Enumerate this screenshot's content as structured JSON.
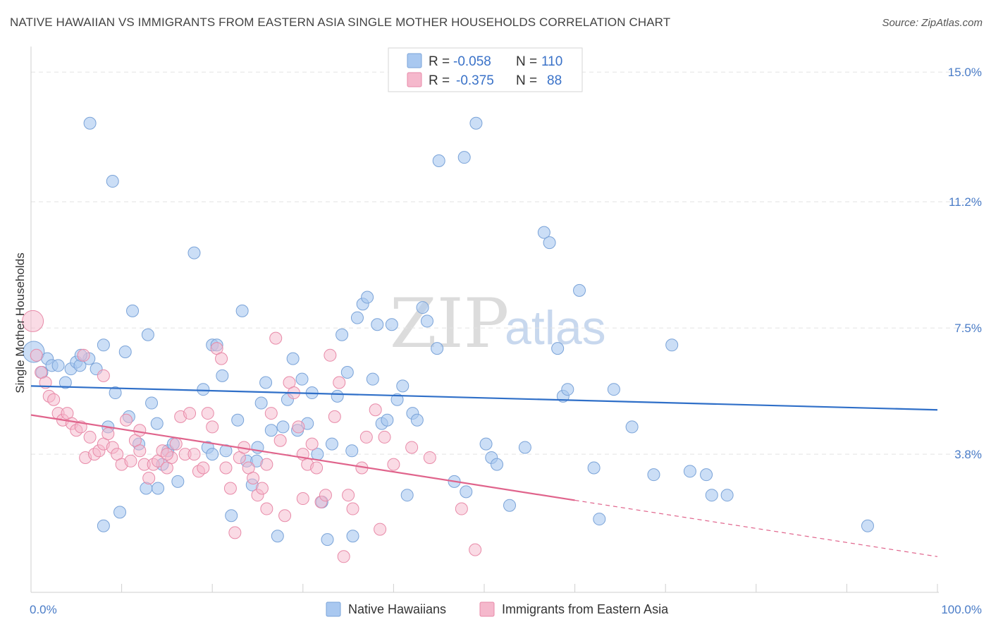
{
  "title": "NATIVE HAWAIIAN VS IMMIGRANTS FROM EASTERN ASIA SINGLE MOTHER HOUSEHOLDS CORRELATION CHART",
  "source": "Source: ZipAtlas.com",
  "watermark": {
    "zip": "ZIP",
    "atlas": "atlas"
  },
  "colors": {
    "blue": "#a9c8f0",
    "blue_edge": "#7aa3d8",
    "blue_line": "#2f6fc8",
    "pink": "#f5b8cc",
    "pink_edge": "#e88aa8",
    "pink_line": "#e0648c",
    "tick_label": "#4a7cc7"
  },
  "legend": {
    "rows": [
      {
        "r_label": "R =",
        "r_value": "-0.058",
        "n_label": "N =",
        "n_value": "110",
        "color": "blue"
      },
      {
        "r_label": "R =",
        "r_value": "-0.375",
        "n_label": "N =",
        "n_value": "88",
        "color": "pink"
      }
    ]
  },
  "bottom_legend": [
    {
      "label": "Native Hawaiians",
      "color": "blue"
    },
    {
      "label": "Immigrants from Eastern Asia",
      "color": "pink"
    }
  ],
  "chart_data": {
    "type": "scatter",
    "title": "NATIVE HAWAIIAN VS IMMIGRANTS FROM EASTERN ASIA SINGLE MOTHER HOUSEHOLDS CORRELATION CHART",
    "xlabel": "",
    "ylabel": "Single Mother Households",
    "xlim": [
      0,
      100
    ],
    "ylim": [
      0,
      15.5
    ],
    "x_tick_labels": [
      "0.0%",
      "100.0%"
    ],
    "y_ticks": [
      3.8,
      7.5,
      11.2,
      15.0
    ],
    "y_tick_labels": [
      "3.8%",
      "7.5%",
      "11.2%",
      "15.0%"
    ],
    "grid": true,
    "legend_position": "top-center",
    "series": [
      {
        "name": "Native Hawaiians",
        "color": "blue",
        "trend": {
          "x0": 0,
          "y0": 5.8,
          "x1": 100,
          "y1": 5.1
        },
        "points": [
          [
            0.3,
            6.8
          ],
          [
            1.2,
            6.2
          ],
          [
            1.8,
            6.6
          ],
          [
            2.3,
            6.4
          ],
          [
            3.0,
            6.4
          ],
          [
            3.8,
            5.9
          ],
          [
            4.4,
            6.3
          ],
          [
            5.0,
            6.5
          ],
          [
            5.4,
            6.4
          ],
          [
            6.4,
            6.6
          ],
          [
            7.2,
            6.3
          ],
          [
            8.0,
            7.0
          ],
          [
            8.5,
            4.6
          ],
          [
            9.0,
            11.8
          ],
          [
            9.3,
            5.6
          ],
          [
            9.8,
            2.1
          ],
          [
            10.4,
            6.8
          ],
          [
            10.8,
            4.9
          ],
          [
            11.2,
            8.0
          ],
          [
            11.9,
            4.1
          ],
          [
            12.9,
            7.3
          ],
          [
            13.3,
            5.3
          ],
          [
            13.9,
            4.7
          ],
          [
            14.5,
            3.5
          ],
          [
            15.1,
            3.9
          ],
          [
            15.7,
            4.1
          ],
          [
            16.2,
            3.0
          ],
          [
            18.0,
            9.7
          ],
          [
            19.0,
            5.7
          ],
          [
            19.5,
            4.0
          ],
          [
            20.0,
            7.0
          ],
          [
            20.5,
            7.0
          ],
          [
            21.1,
            6.1
          ],
          [
            21.5,
            3.9
          ],
          [
            22.1,
            2.0
          ],
          [
            22.8,
            4.8
          ],
          [
            23.3,
            8.0
          ],
          [
            23.8,
            3.6
          ],
          [
            24.4,
            2.9
          ],
          [
            24.9,
            3.6
          ],
          [
            25.4,
            5.3
          ],
          [
            25.9,
            5.9
          ],
          [
            26.5,
            4.5
          ],
          [
            27.2,
            1.4
          ],
          [
            27.8,
            4.6
          ],
          [
            28.3,
            5.4
          ],
          [
            28.9,
            6.6
          ],
          [
            29.4,
            4.5
          ],
          [
            29.9,
            6.0
          ],
          [
            30.5,
            4.7
          ],
          [
            31.0,
            5.6
          ],
          [
            31.6,
            3.8
          ],
          [
            32.1,
            2.4
          ],
          [
            32.7,
            1.3
          ],
          [
            33.2,
            4.1
          ],
          [
            33.8,
            5.5
          ],
          [
            34.3,
            7.3
          ],
          [
            34.9,
            6.2
          ],
          [
            35.4,
            3.9
          ],
          [
            36.0,
            7.8
          ],
          [
            36.6,
            8.2
          ],
          [
            37.1,
            8.4
          ],
          [
            37.7,
            6.0
          ],
          [
            38.2,
            7.6
          ],
          [
            38.7,
            4.7
          ],
          [
            39.3,
            4.8
          ],
          [
            39.8,
            7.6
          ],
          [
            40.4,
            5.4
          ],
          [
            41.0,
            5.8
          ],
          [
            41.5,
            2.6
          ],
          [
            42.1,
            5.0
          ],
          [
            42.6,
            4.8
          ],
          [
            43.2,
            8.1
          ],
          [
            43.7,
            7.7
          ],
          [
            45.0,
            12.4
          ],
          [
            44.8,
            6.9
          ],
          [
            46.7,
            3.0
          ],
          [
            47.8,
            12.5
          ],
          [
            48.0,
            2.7
          ],
          [
            49.1,
            13.5
          ],
          [
            50.2,
            4.1
          ],
          [
            50.8,
            3.7
          ],
          [
            51.4,
            3.5
          ],
          [
            52.8,
            2.3
          ],
          [
            54.5,
            4.0
          ],
          [
            56.6,
            10.3
          ],
          [
            57.2,
            10.0
          ],
          [
            58.1,
            6.9
          ],
          [
            58.7,
            5.5
          ],
          [
            59.2,
            5.7
          ],
          [
            60.5,
            8.6
          ],
          [
            62.1,
            3.4
          ],
          [
            62.7,
            1.9
          ],
          [
            64.3,
            5.7
          ],
          [
            66.3,
            4.6
          ],
          [
            68.7,
            3.2
          ],
          [
            70.7,
            7.0
          ],
          [
            72.7,
            3.3
          ],
          [
            74.5,
            3.2
          ],
          [
            75.1,
            2.6
          ],
          [
            76.8,
            2.6
          ],
          [
            92.3,
            1.7
          ],
          [
            8.0,
            1.7
          ],
          [
            6.5,
            13.5
          ],
          [
            14.0,
            2.8
          ],
          [
            12.7,
            2.8
          ],
          [
            20.0,
            3.8
          ],
          [
            25.0,
            4.0
          ],
          [
            35.5,
            1.4
          ],
          [
            5.5,
            6.7
          ]
        ]
      },
      {
        "name": "Immigrants from Eastern Asia",
        "color": "pink",
        "trend": {
          "x0": 0,
          "y0": 4.95,
          "x1": 60,
          "y1": 2.45,
          "dash_x1": 100,
          "dash_y1": 0.8
        },
        "points": [
          [
            0.2,
            7.7
          ],
          [
            0.6,
            6.7
          ],
          [
            1.1,
            6.2
          ],
          [
            1.6,
            5.9
          ],
          [
            2.0,
            5.5
          ],
          [
            2.5,
            5.4
          ],
          [
            3.0,
            5.0
          ],
          [
            3.5,
            4.8
          ],
          [
            4.0,
            5.0
          ],
          [
            4.5,
            4.7
          ],
          [
            5.0,
            4.5
          ],
          [
            5.5,
            4.6
          ],
          [
            6.0,
            3.7
          ],
          [
            6.5,
            4.3
          ],
          [
            7.0,
            3.8
          ],
          [
            7.5,
            3.9
          ],
          [
            8.0,
            4.1
          ],
          [
            8.5,
            4.4
          ],
          [
            9.0,
            4.0
          ],
          [
            9.5,
            3.8
          ],
          [
            10.0,
            3.5
          ],
          [
            10.5,
            4.8
          ],
          [
            11.0,
            3.6
          ],
          [
            11.5,
            4.2
          ],
          [
            12.0,
            3.9
          ],
          [
            12.5,
            3.5
          ],
          [
            13.0,
            3.1
          ],
          [
            13.5,
            3.5
          ],
          [
            14.0,
            3.6
          ],
          [
            14.5,
            3.9
          ],
          [
            15.0,
            3.4
          ],
          [
            15.5,
            3.7
          ],
          [
            16.0,
            4.1
          ],
          [
            16.5,
            4.9
          ],
          [
            17.0,
            3.8
          ],
          [
            17.5,
            5.0
          ],
          [
            18.0,
            3.8
          ],
          [
            18.5,
            3.3
          ],
          [
            19.0,
            3.4
          ],
          [
            19.5,
            5.0
          ],
          [
            20.0,
            4.6
          ],
          [
            20.5,
            6.9
          ],
          [
            21.0,
            6.6
          ],
          [
            21.5,
            3.4
          ],
          [
            22.0,
            2.8
          ],
          [
            22.5,
            1.5
          ],
          [
            23.0,
            3.7
          ],
          [
            23.5,
            4.0
          ],
          [
            24.0,
            3.4
          ],
          [
            24.5,
            3.1
          ],
          [
            25.0,
            2.6
          ],
          [
            25.5,
            2.8
          ],
          [
            26.0,
            3.5
          ],
          [
            26.5,
            5.0
          ],
          [
            27.0,
            7.2
          ],
          [
            27.5,
            4.2
          ],
          [
            28.0,
            2.0
          ],
          [
            28.5,
            5.9
          ],
          [
            29.0,
            5.6
          ],
          [
            29.5,
            4.6
          ],
          [
            30.0,
            3.8
          ],
          [
            30.5,
            3.5
          ],
          [
            31.0,
            4.1
          ],
          [
            31.5,
            3.4
          ],
          [
            32.0,
            2.4
          ],
          [
            32.5,
            2.6
          ],
          [
            33.0,
            6.7
          ],
          [
            33.5,
            4.9
          ],
          [
            34.0,
            5.9
          ],
          [
            34.5,
            0.8
          ],
          [
            35.5,
            2.2
          ],
          [
            36.5,
            3.4
          ],
          [
            37.0,
            4.3
          ],
          [
            38.0,
            5.1
          ],
          [
            38.5,
            1.6
          ],
          [
            39.0,
            4.3
          ],
          [
            42.0,
            4.0
          ],
          [
            44.0,
            3.7
          ],
          [
            47.5,
            2.2
          ],
          [
            49.0,
            1.0
          ],
          [
            8.0,
            6.1
          ],
          [
            5.8,
            6.7
          ],
          [
            12.0,
            4.5
          ],
          [
            15.0,
            3.8
          ],
          [
            26.0,
            2.2
          ],
          [
            30.0,
            2.5
          ],
          [
            35.0,
            2.6
          ],
          [
            40.0,
            3.5
          ]
        ]
      }
    ]
  }
}
